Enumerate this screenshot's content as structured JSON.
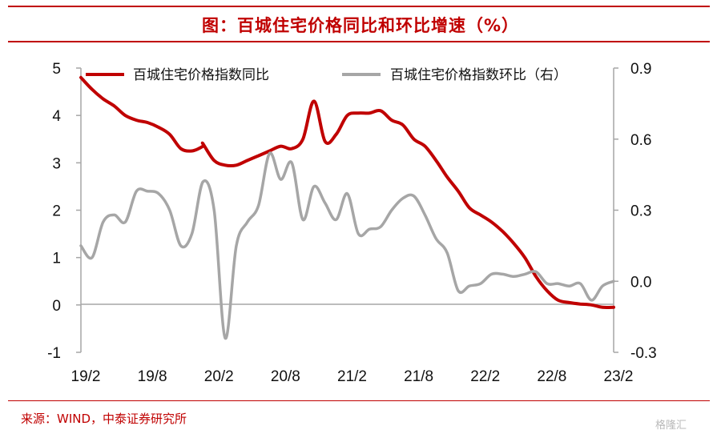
{
  "title": "图：百城住宅价格同比和环比增速（%）",
  "source": "来源：WIND，中泰证券研究所",
  "watermark": "格隆汇",
  "colors": {
    "accent": "#c00000",
    "series1": "#c00000",
    "series2": "#a6a6a6",
    "axis": "#a6a6a6"
  },
  "chart_data": {
    "type": "line",
    "title": "百城住宅价格同比和环比增速（%）",
    "xlabel": "",
    "ylabel": "",
    "x_ticks": [
      "19/2",
      "19/8",
      "20/2",
      "20/8",
      "21/2",
      "21/8",
      "22/2",
      "22/8",
      "23/2"
    ],
    "x_range": [
      "2019-02",
      "2023-02"
    ],
    "y_left": {
      "range": [
        -1,
        5
      ],
      "ticks": [
        "-1",
        "0",
        "1",
        "2",
        "3",
        "4",
        "5"
      ]
    },
    "y_right": {
      "range": [
        -0.3,
        0.9
      ],
      "ticks": [
        "-0.3",
        "0.0",
        "0.3",
        "0.6",
        "0.9"
      ]
    },
    "legend_position": "top",
    "grid": false,
    "series": [
      {
        "name": "百城住宅价格指数同比",
        "axis": "left",
        "points": [
          [
            "2019-02",
            4.8
          ],
          [
            "2019-03",
            4.55
          ],
          [
            "2019-04",
            4.35
          ],
          [
            "2019-05",
            4.2
          ],
          [
            "2019-06",
            4.0
          ],
          [
            "2019-07",
            3.9
          ],
          [
            "2019-08",
            3.85
          ],
          [
            "2019-09",
            3.75
          ],
          [
            "2019-10",
            3.6
          ],
          [
            "2019-11",
            3.3
          ],
          [
            "2019-12",
            3.25
          ],
          [
            "2019-13",
            3.35
          ],
          [
            "2020-01",
            3.4
          ],
          [
            "2020-02",
            3.05
          ],
          [
            "2020-03",
            2.95
          ],
          [
            "2020-04",
            2.95
          ],
          [
            "2020-05",
            3.05
          ],
          [
            "2020-06",
            3.15
          ],
          [
            "2020-07",
            3.25
          ],
          [
            "2020-08",
            3.35
          ],
          [
            "2020-09",
            3.3
          ],
          [
            "2020-10",
            3.5
          ],
          [
            "2020-11",
            4.3
          ],
          [
            "2020-12",
            3.45
          ],
          [
            "2021-01",
            3.6
          ],
          [
            "2021-02",
            4.0
          ],
          [
            "2021-03",
            4.05
          ],
          [
            "2021-04",
            4.05
          ],
          [
            "2021-05",
            4.1
          ],
          [
            "2021-06",
            3.9
          ],
          [
            "2021-07",
            3.8
          ],
          [
            "2021-08",
            3.5
          ],
          [
            "2021-09",
            3.35
          ],
          [
            "2021-10",
            3.05
          ],
          [
            "2021-11",
            2.7
          ],
          [
            "2021-12",
            2.4
          ],
          [
            "2022-01",
            2.05
          ],
          [
            "2022-02",
            1.9
          ],
          [
            "2022-03",
            1.75
          ],
          [
            "2022-04",
            1.55
          ],
          [
            "2022-05",
            1.3
          ],
          [
            "2022-06",
            1.0
          ],
          [
            "2022-07",
            0.6
          ],
          [
            "2022-08",
            0.3
          ],
          [
            "2022-09",
            0.1
          ],
          [
            "2022-10",
            0.05
          ],
          [
            "2022-11",
            0.02
          ],
          [
            "2022-12",
            0.0
          ],
          [
            "2023-01",
            -0.05
          ],
          [
            "2023-02",
            -0.05
          ]
        ]
      },
      {
        "name": "百城住宅价格指数环比（右）",
        "axis": "right",
        "points": [
          [
            "2019-02",
            0.15
          ],
          [
            "2019-03",
            0.1
          ],
          [
            "2019-04",
            0.25
          ],
          [
            "2019-05",
            0.28
          ],
          [
            "2019-06",
            0.25
          ],
          [
            "2019-07",
            0.38
          ],
          [
            "2019-08",
            0.38
          ],
          [
            "2019-09",
            0.37
          ],
          [
            "2019-10",
            0.3
          ],
          [
            "2019-11",
            0.15
          ],
          [
            "2019-12",
            0.2
          ],
          [
            "2020-01",
            0.42
          ],
          [
            "2020-02",
            0.3
          ],
          [
            "2020-03",
            -0.24
          ],
          [
            "2020-04",
            0.15
          ],
          [
            "2020-05",
            0.25
          ],
          [
            "2020-06",
            0.32
          ],
          [
            "2020-07",
            0.54
          ],
          [
            "2020-08",
            0.43
          ],
          [
            "2020-09",
            0.5
          ],
          [
            "2020-10",
            0.26
          ],
          [
            "2020-11",
            0.4
          ],
          [
            "2020-12",
            0.33
          ],
          [
            "2021-01",
            0.26
          ],
          [
            "2021-02",
            0.37
          ],
          [
            "2021-03",
            0.2
          ],
          [
            "2021-04",
            0.22
          ],
          [
            "2021-05",
            0.23
          ],
          [
            "2021-06",
            0.3
          ],
          [
            "2021-07",
            0.35
          ],
          [
            "2021-08",
            0.36
          ],
          [
            "2021-09",
            0.28
          ],
          [
            "2021-10",
            0.18
          ],
          [
            "2021-11",
            0.12
          ],
          [
            "2021-12",
            -0.04
          ],
          [
            "2022-01",
            -0.02
          ],
          [
            "2022-02",
            -0.01
          ],
          [
            "2022-03",
            0.03
          ],
          [
            "2022-04",
            0.03
          ],
          [
            "2022-05",
            0.02
          ],
          [
            "2022-06",
            0.03
          ],
          [
            "2022-07",
            0.04
          ],
          [
            "2022-08",
            -0.01
          ],
          [
            "2022-09",
            -0.01
          ],
          [
            "2022-10",
            -0.02
          ],
          [
            "2022-11",
            -0.01
          ],
          [
            "2022-12",
            -0.08
          ],
          [
            "2023-01",
            -0.02
          ],
          [
            "2023-02",
            0.0
          ]
        ]
      }
    ]
  }
}
